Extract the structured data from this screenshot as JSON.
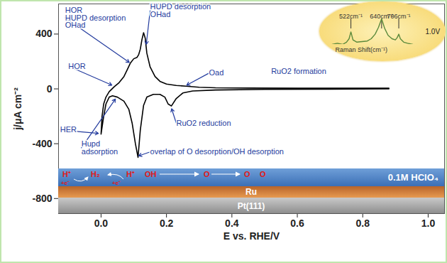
{
  "chart_data": {
    "type": "line",
    "xlabel": "E vs. RHE/V",
    "ylabel": "j/μA cm⁻²",
    "xlim": [
      -0.13,
      1.05
    ],
    "xticks": [
      {
        "value": 0,
        "label": "0.0"
      },
      0.2,
      0.4,
      0.6,
      0.8,
      {
        "value": 1,
        "label": "1.0"
      }
    ],
    "ylim": [
      -910,
      620
    ],
    "yticks": [
      -800,
      -400,
      0,
      400
    ],
    "grid": false,
    "series": [
      {
        "color": "#000000",
        "x": [
          0,
          0.003,
          0.008,
          0.015,
          0.025,
          0.04,
          0.055,
          0.07,
          0.08,
          0.09,
          0.1,
          0.11,
          0.115,
          0.12,
          0.125,
          0.13,
          0.135,
          0.14,
          0.15,
          0.165,
          0.18,
          0.2,
          0.23,
          0.26,
          0.3,
          0.35,
          0.45,
          0.6,
          0.75,
          0.88,
          0.88,
          0.7,
          0.5,
          0.35,
          0.28,
          0.25,
          0.23,
          0.215,
          0.205,
          0.195,
          0.18,
          0.16,
          0.14,
          0.13,
          0.12,
          0.113,
          0.105,
          0.095,
          0.085,
          0.07,
          0.05,
          0.035,
          0.025,
          0.015,
          0.008,
          0
        ],
        "values": [
          -330,
          -200,
          -110,
          -60,
          -20,
          15,
          45,
          90,
          140,
          190,
          220,
          230,
          250,
          290,
          360,
          410,
          370,
          260,
          160,
          90,
          55,
          35,
          25,
          20,
          12,
          8,
          6,
          5,
          5,
          5,
          0,
          -2,
          -4,
          -8,
          -15,
          -30,
          -70,
          -125,
          -110,
          -60,
          -40,
          -40,
          -60,
          -120,
          -300,
          -500,
          -400,
          -250,
          -150,
          -90,
          -60,
          -50,
          -60,
          -110,
          -200,
          -330
        ]
      }
    ],
    "annotations": [
      {
        "text": [
          "HOR"
        ],
        "x": -0.1,
        "y": 166,
        "target": [
          0.035,
          25
        ]
      },
      {
        "text": [
          "HOR",
          "HUPD desorption",
          "OHad"
        ],
        "x": -0.11,
        "y": 519,
        "target": [
          0.088,
          190
        ]
      },
      {
        "text": [
          "HUPD desorption",
          "OHad"
        ],
        "x": 0.15,
        "y": 570,
        "target": [
          0.138,
          320
        ]
      },
      {
        "text": [
          "Oad"
        ],
        "x": 0.33,
        "y": 115,
        "target": [
          0.26,
          25
        ]
      },
      {
        "text": [
          "RuO2 formation"
        ],
        "x": 0.52,
        "y": 130
      },
      {
        "text": [
          "RuO2 reduction"
        ],
        "x": 0.23,
        "y": -250,
        "target": [
          0.215,
          -140
        ]
      },
      {
        "text": [
          "HER"
        ],
        "x": -0.125,
        "y": -300,
        "target": [
          -0.006,
          -325
        ]
      },
      {
        "text": [
          "Hupd",
          "adsorption"
        ],
        "x": -0.06,
        "y": -430,
        "target": [
          0.045,
          -70
        ]
      },
      {
        "text": [
          "overlap of O desorption/OH desorption"
        ],
        "x": 0.15,
        "y": -460,
        "target": [
          0.113,
          -490
        ]
      }
    ],
    "inset": {
      "type": "line",
      "xlabel": "Raman Shift(cm⁻¹)",
      "label": "1.0V",
      "color": "#5c8a3c",
      "tick_labels": false,
      "xlim": [
        440,
        800
      ],
      "x": [
        450,
        470,
        490,
        505,
        515,
        522,
        530,
        545,
        565,
        585,
        600,
        615,
        628,
        640,
        652,
        665,
        680,
        693,
        700,
        706,
        712,
        725,
        740,
        760
      ],
      "values": [
        0.4,
        0.42,
        0.4,
        0.44,
        0.5,
        0.62,
        0.48,
        0.44,
        0.45,
        0.46,
        0.5,
        0.58,
        0.7,
        0.85,
        0.68,
        0.56,
        0.5,
        0.48,
        0.52,
        0.58,
        0.5,
        0.44,
        0.42,
        0.4
      ],
      "peaks": [
        {
          "value": 522,
          "label": "522cm⁻¹"
        },
        {
          "value": 640,
          "label": "640cm⁻¹"
        },
        {
          "value": 706,
          "label": "706cm⁻¹"
        }
      ]
    },
    "diagram": {
      "electrolyte": "0.1M HClO₄",
      "layers": [
        "Ru",
        "Pt(111)"
      ],
      "species": [
        "H⁺",
        "+e⁻",
        "H₂",
        "H⁺",
        "+e⁻",
        "OH",
        "O",
        "O",
        "O"
      ]
    }
  }
}
